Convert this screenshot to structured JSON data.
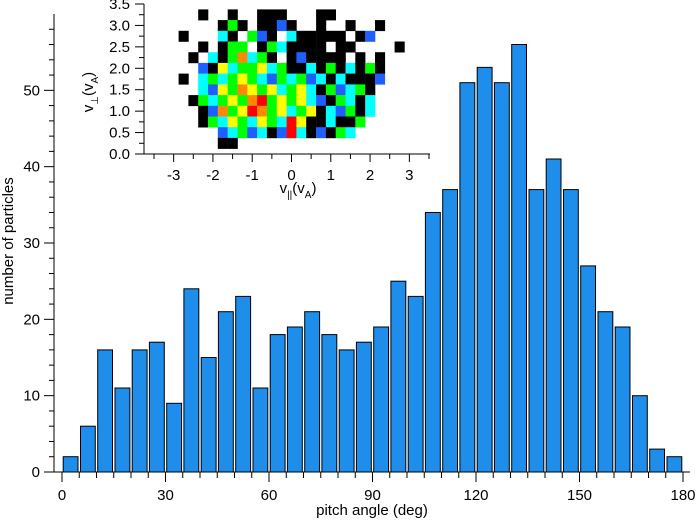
{
  "chart_data": [
    {
      "type": "bar",
      "xlabel": "pitch angle (deg)",
      "ylabel": "number of particles",
      "bin_width": 5,
      "x_bin_starts": [
        0,
        5,
        10,
        15,
        20,
        25,
        30,
        35,
        40,
        45,
        50,
        55,
        60,
        65,
        70,
        75,
        80,
        85,
        90,
        95,
        100,
        105,
        110,
        115,
        120,
        125,
        130,
        135,
        140,
        145,
        150,
        155,
        160,
        165,
        170,
        175
      ],
      "values": [
        2,
        6,
        16,
        11,
        16,
        17,
        9,
        24,
        15,
        21,
        23,
        11,
        18,
        19,
        21,
        18,
        16,
        17,
        19,
        25,
        23,
        34,
        37,
        51,
        53,
        51,
        56,
        37,
        41,
        37,
        27,
        21,
        19,
        10,
        3,
        2
      ],
      "xlim": [
        0,
        180
      ],
      "ylim": [
        0,
        60
      ],
      "x_ticks": [
        0,
        30,
        60,
        90,
        120,
        150,
        180
      ],
      "y_ticks": [
        0,
        10,
        20,
        30,
        40,
        50
      ],
      "bar_color": "#1E8EEA",
      "edge_color": "#000000"
    },
    {
      "type": "heatmap",
      "xlabel_main": "v",
      "xlabel_sub": "||",
      "xlabel_paren": "(v",
      "xlabel_paren_sub": "A",
      "xlabel_close": ")",
      "ylabel_main": "v",
      "ylabel_sub": "⊥",
      "ylabel_paren": "(v",
      "ylabel_paren_sub": "A",
      "ylabel_close": ")",
      "xlim": [
        -3.5,
        3.5
      ],
      "ylim": [
        0,
        3.5
      ],
      "x_ticks": [
        -3,
        -2,
        -1,
        0,
        1,
        2,
        3
      ],
      "y_ticks": [
        0.0,
        0.5,
        1.0,
        1.5,
        2.0,
        2.5,
        3.0,
        3.5
      ],
      "y_tick_labels": [
        "0.0",
        "0.5",
        "1.0",
        "1.5",
        "2.0",
        "2.5",
        "3.0",
        "3.5"
      ],
      "cell_size": 0.25,
      "colors": [
        "#000000",
        "#1E60FF",
        "#00FFFF",
        "#00FF00",
        "#FFFF00",
        "#FF8800",
        "#FF0000"
      ],
      "cells": [
        [
          -2.25,
          3.25,
          0
        ],
        [
          -1.5,
          3.25,
          0
        ],
        [
          -0.75,
          3.25,
          0
        ],
        [
          -0.5,
          3.25,
          0
        ],
        [
          -0.25,
          3.25,
          0
        ],
        [
          0.75,
          3.25,
          0
        ],
        [
          1.0,
          3.25,
          0
        ],
        [
          -1.75,
          3.0,
          0
        ],
        [
          -1.5,
          3.0,
          3
        ],
        [
          -1.25,
          3.0,
          0
        ],
        [
          -0.75,
          3.0,
          0
        ],
        [
          -0.5,
          3.0,
          0
        ],
        [
          -0.25,
          3.0,
          1
        ],
        [
          0.0,
          3.0,
          0
        ],
        [
          0.75,
          3.0,
          0
        ],
        [
          1.5,
          3.0,
          0
        ],
        [
          2.25,
          3.0,
          0
        ],
        [
          -2.75,
          2.75,
          0
        ],
        [
          -1.75,
          2.75,
          2
        ],
        [
          -1.5,
          2.75,
          0
        ],
        [
          -1.0,
          2.75,
          3
        ],
        [
          -0.75,
          2.75,
          1
        ],
        [
          -0.5,
          2.75,
          0
        ],
        [
          0.0,
          2.75,
          2
        ],
        [
          0.25,
          2.75,
          0
        ],
        [
          0.5,
          2.75,
          0
        ],
        [
          0.75,
          2.75,
          0
        ],
        [
          1.0,
          2.75,
          0
        ],
        [
          1.25,
          2.75,
          0
        ],
        [
          1.75,
          2.75,
          0
        ],
        [
          2.0,
          2.75,
          1
        ],
        [
          -2.25,
          2.5,
          0
        ],
        [
          -1.75,
          2.5,
          0
        ],
        [
          -1.5,
          2.5,
          3
        ],
        [
          -1.25,
          2.5,
          3
        ],
        [
          -0.75,
          2.5,
          0
        ],
        [
          -0.5,
          2.5,
          3
        ],
        [
          -0.25,
          2.5,
          2
        ],
        [
          0.0,
          2.5,
          0
        ],
        [
          0.25,
          2.5,
          0
        ],
        [
          0.5,
          2.5,
          0
        ],
        [
          0.75,
          2.5,
          0
        ],
        [
          1.25,
          2.5,
          0
        ],
        [
          1.5,
          2.5,
          0
        ],
        [
          2.75,
          2.5,
          0
        ],
        [
          -2.5,
          2.25,
          0
        ],
        [
          -2.0,
          2.25,
          2
        ],
        [
          -1.75,
          2.25,
          0
        ],
        [
          -1.5,
          2.25,
          3
        ],
        [
          -1.25,
          2.25,
          5
        ],
        [
          -1.0,
          2.25,
          2
        ],
        [
          -0.75,
          2.25,
          3
        ],
        [
          -0.5,
          2.25,
          0
        ],
        [
          0.0,
          2.25,
          0
        ],
        [
          0.25,
          2.25,
          1
        ],
        [
          0.5,
          2.25,
          0
        ],
        [
          0.75,
          2.25,
          0
        ],
        [
          1.0,
          2.25,
          0
        ],
        [
          1.25,
          2.25,
          0
        ],
        [
          1.75,
          2.25,
          0
        ],
        [
          2.25,
          2.25,
          0
        ],
        [
          -2.25,
          2.0,
          1
        ],
        [
          -2.0,
          2.0,
          0
        ],
        [
          -1.75,
          2.0,
          4
        ],
        [
          -1.5,
          2.0,
          2
        ],
        [
          -1.25,
          2.0,
          3
        ],
        [
          -1.0,
          2.0,
          3
        ],
        [
          -0.75,
          2.0,
          4
        ],
        [
          -0.5,
          2.0,
          2
        ],
        [
          -0.25,
          2.0,
          3
        ],
        [
          0.0,
          2.0,
          0
        ],
        [
          0.25,
          2.0,
          0
        ],
        [
          0.5,
          2.0,
          2
        ],
        [
          0.75,
          2.0,
          0
        ],
        [
          1.0,
          2.0,
          3
        ],
        [
          1.25,
          2.0,
          0
        ],
        [
          1.5,
          2.0,
          2
        ],
        [
          1.75,
          2.0,
          0
        ],
        [
          2.0,
          2.0,
          3
        ],
        [
          2.25,
          2.0,
          0
        ],
        [
          -2.75,
          1.75,
          0
        ],
        [
          -2.25,
          1.75,
          2
        ],
        [
          -2.0,
          1.75,
          3
        ],
        [
          -1.75,
          1.75,
          2
        ],
        [
          -1.5,
          1.75,
          3
        ],
        [
          -1.25,
          1.75,
          4
        ],
        [
          -1.0,
          1.75,
          3
        ],
        [
          -0.75,
          1.75,
          2
        ],
        [
          -0.5,
          1.75,
          1
        ],
        [
          -0.25,
          1.75,
          3
        ],
        [
          0.0,
          1.75,
          2
        ],
        [
          0.25,
          1.75,
          3
        ],
        [
          0.5,
          1.75,
          1
        ],
        [
          0.75,
          1.75,
          2
        ],
        [
          1.0,
          1.75,
          0
        ],
        [
          1.25,
          1.75,
          2
        ],
        [
          1.5,
          1.75,
          0
        ],
        [
          1.75,
          1.75,
          0
        ],
        [
          2.0,
          1.75,
          0
        ],
        [
          2.25,
          1.75,
          1
        ],
        [
          -2.25,
          1.5,
          2
        ],
        [
          -2.0,
          1.5,
          1
        ],
        [
          -1.75,
          1.5,
          4
        ],
        [
          -1.5,
          1.5,
          3
        ],
        [
          -1.25,
          1.5,
          5
        ],
        [
          -1.0,
          1.5,
          4
        ],
        [
          -0.75,
          1.5,
          3
        ],
        [
          -0.5,
          1.5,
          4
        ],
        [
          -0.25,
          1.5,
          2
        ],
        [
          0.0,
          1.5,
          3
        ],
        [
          0.25,
          1.5,
          4
        ],
        [
          0.5,
          1.5,
          2
        ],
        [
          0.75,
          1.5,
          0
        ],
        [
          1.0,
          1.5,
          3
        ],
        [
          1.25,
          1.5,
          1
        ],
        [
          1.5,
          1.5,
          2
        ],
        [
          1.75,
          1.5,
          3
        ],
        [
          2.0,
          1.5,
          0
        ],
        [
          -2.5,
          1.25,
          0
        ],
        [
          -2.25,
          1.25,
          3
        ],
        [
          -2.0,
          1.25,
          2
        ],
        [
          -1.75,
          1.25,
          3
        ],
        [
          -1.5,
          1.25,
          4
        ],
        [
          -1.25,
          1.25,
          3
        ],
        [
          -1.0,
          1.25,
          5
        ],
        [
          -0.75,
          1.25,
          6
        ],
        [
          -0.5,
          1.25,
          3
        ],
        [
          -0.25,
          1.25,
          4
        ],
        [
          0.0,
          1.25,
          3
        ],
        [
          0.25,
          1.25,
          4
        ],
        [
          0.5,
          1.25,
          2
        ],
        [
          0.75,
          1.25,
          1
        ],
        [
          1.0,
          1.25,
          0
        ],
        [
          1.25,
          1.25,
          3
        ],
        [
          1.5,
          1.25,
          2
        ],
        [
          1.75,
          1.25,
          0
        ],
        [
          2.0,
          1.25,
          2
        ],
        [
          -2.25,
          1.0,
          0
        ],
        [
          -2.0,
          1.0,
          1
        ],
        [
          -1.75,
          1.0,
          5
        ],
        [
          -1.5,
          1.0,
          3
        ],
        [
          -1.25,
          1.0,
          4
        ],
        [
          -1.0,
          1.0,
          6
        ],
        [
          -0.75,
          1.0,
          5
        ],
        [
          -0.5,
          1.0,
          3
        ],
        [
          -0.25,
          1.0,
          4
        ],
        [
          0.0,
          1.0,
          2
        ],
        [
          0.25,
          1.0,
          3
        ],
        [
          0.5,
          1.0,
          4
        ],
        [
          0.75,
          1.0,
          0
        ],
        [
          1.0,
          1.0,
          2
        ],
        [
          1.25,
          1.0,
          1
        ],
        [
          1.5,
          1.0,
          3
        ],
        [
          1.75,
          1.0,
          0
        ],
        [
          2.0,
          1.0,
          2
        ],
        [
          -2.25,
          0.75,
          0
        ],
        [
          -2.0,
          0.75,
          3
        ],
        [
          -1.75,
          0.75,
          2
        ],
        [
          -1.5,
          0.75,
          4
        ],
        [
          -1.25,
          0.75,
          3
        ],
        [
          -1.0,
          0.75,
          2
        ],
        [
          -0.75,
          0.75,
          4
        ],
        [
          -0.5,
          0.75,
          3
        ],
        [
          -0.25,
          0.75,
          2
        ],
        [
          0.0,
          0.75,
          6
        ],
        [
          0.25,
          0.75,
          4
        ],
        [
          0.5,
          0.75,
          0
        ],
        [
          0.75,
          0.75,
          0
        ],
        [
          1.0,
          0.75,
          2
        ],
        [
          1.25,
          0.75,
          0
        ],
        [
          1.5,
          0.75,
          0
        ],
        [
          1.75,
          0.75,
          3
        ],
        [
          -1.75,
          0.5,
          1
        ],
        [
          -1.5,
          0.5,
          2
        ],
        [
          -1.25,
          0.5,
          3
        ],
        [
          -1.0,
          0.5,
          1
        ],
        [
          -0.75,
          0.5,
          2
        ],
        [
          -0.5,
          0.5,
          0
        ],
        [
          -0.25,
          0.5,
          1
        ],
        [
          0.0,
          0.5,
          6
        ],
        [
          0.25,
          0.5,
          2
        ],
        [
          0.5,
          0.5,
          0
        ],
        [
          0.75,
          0.5,
          1
        ],
        [
          1.0,
          0.5,
          0
        ],
        [
          1.25,
          0.5,
          3
        ],
        [
          1.5,
          0.5,
          2
        ],
        [
          -1.75,
          0.25,
          0
        ],
        [
          -1.5,
          0.25,
          0
        ]
      ]
    }
  ]
}
